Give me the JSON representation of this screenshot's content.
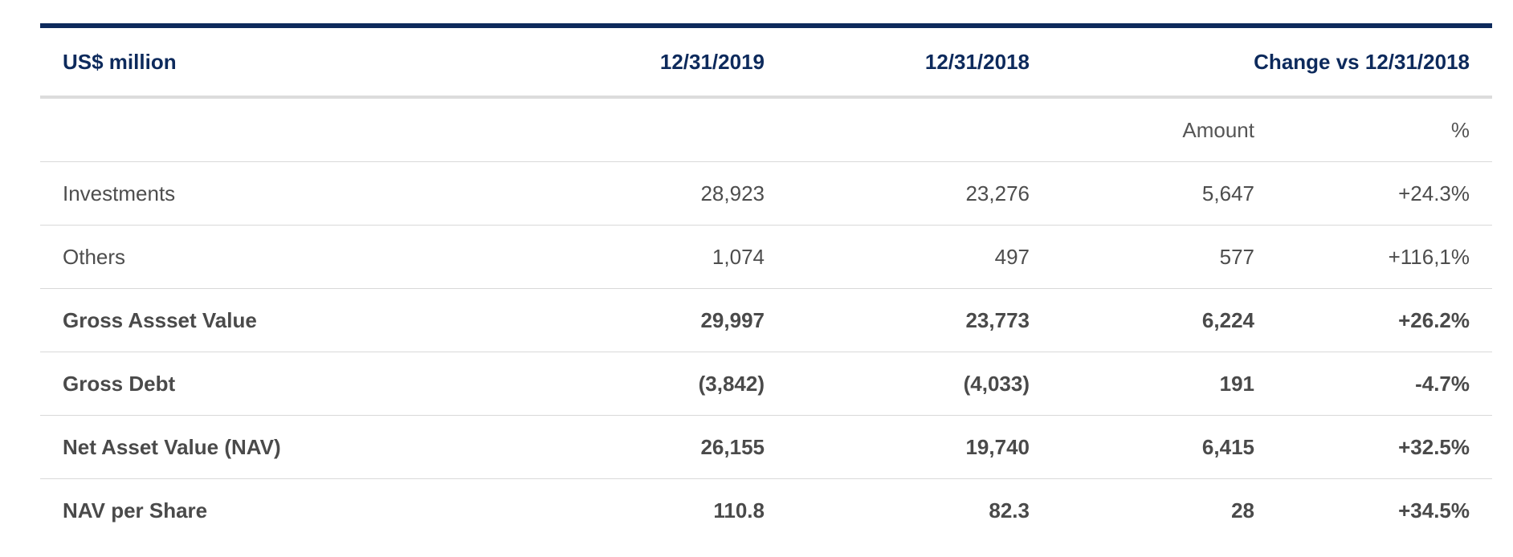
{
  "header": {
    "label": "US$ million",
    "col_2019": "12/31/2019",
    "col_2018": "12/31/2018",
    "col_change": "Change vs 12/31/2018"
  },
  "subheader": {
    "amount": "Amount",
    "percent": "%"
  },
  "rows": [
    {
      "label": "Investments",
      "v2019": "28,923",
      "v2018": "23,276",
      "amount": "5,647",
      "pct": "+24.3%"
    },
    {
      "label": "Others",
      "v2019": "1,074",
      "v2018": "497",
      "amount": "577",
      "pct": "+116,1%"
    },
    {
      "label": "Gross Assset Value",
      "v2019": "29,997",
      "v2018": "23,773",
      "amount": "6,224",
      "pct": "+26.2%"
    },
    {
      "label": "Gross Debt",
      "v2019": "(3,842)",
      "v2018": "(4,033)",
      "amount": "191",
      "pct": "-4.7%"
    },
    {
      "label": "Net Asset Value (NAV)",
      "v2019": "26,155",
      "v2018": "19,740",
      "amount": "6,415",
      "pct": "+32.5%"
    },
    {
      "label": "NAV per Share",
      "v2019": "110.8",
      "v2018": "82.3",
      "amount": "28",
      "pct": "+34.5%"
    }
  ],
  "colors": {
    "header_text": "#0d2a5c",
    "top_rule": "#0d2a5c",
    "body_text": "#4d4d4d",
    "divider": "#d9d9d9"
  }
}
